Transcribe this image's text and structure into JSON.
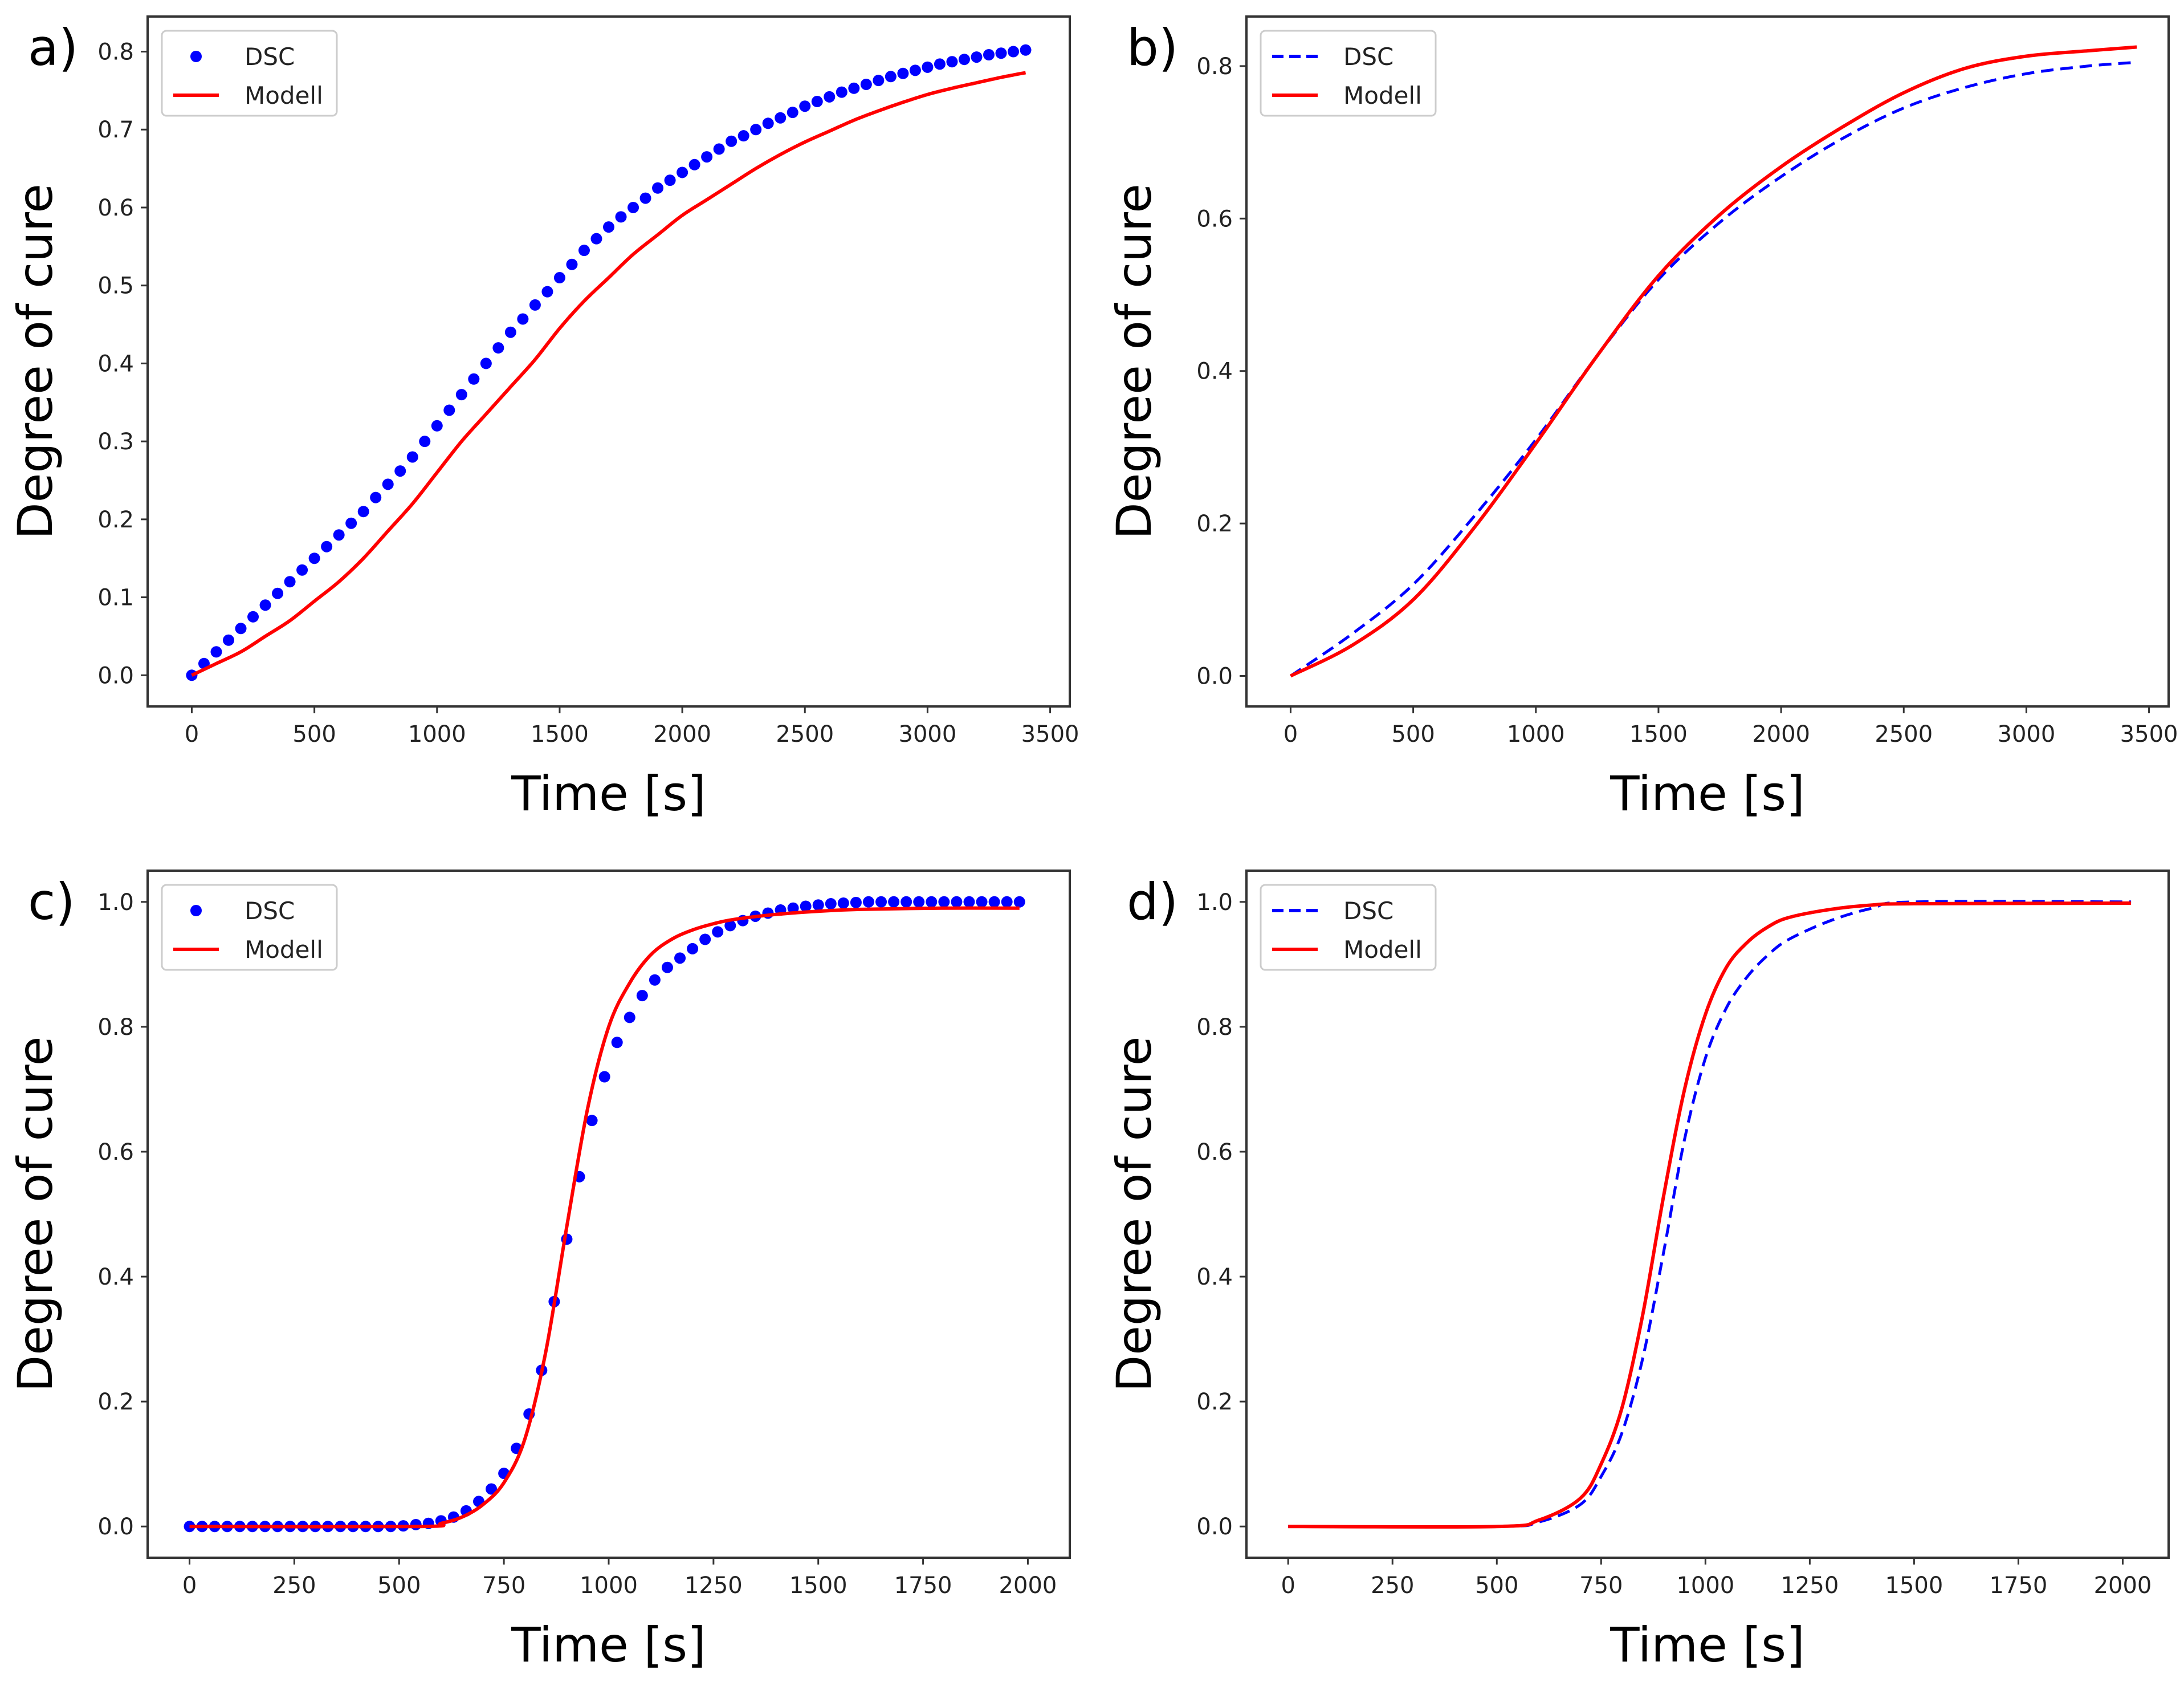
{
  "chart_data": [
    {
      "type": "line",
      "panel_label": "a)",
      "xlabel": "Time [s]",
      "ylabel": "Degree of cure",
      "xlim": [
        -180,
        3580
      ],
      "ylim": [
        -0.04,
        0.845
      ],
      "xticks": [
        0,
        500,
        1000,
        1500,
        2000,
        2500,
        3000,
        3500
      ],
      "yticks": [
        0.0,
        0.1,
        0.2,
        0.3,
        0.4,
        0.5,
        0.6,
        0.7,
        0.8
      ],
      "ytick_decimals": 1,
      "legend": "top-left",
      "series": [
        {
          "name": "DSC",
          "style": "dots",
          "color": "#0000ff",
          "x_start": 0,
          "x_step": 50,
          "y": [
            0,
            0.015,
            0.03,
            0.045,
            0.06,
            0.075,
            0.09,
            0.105,
            0.12,
            0.135,
            0.15,
            0.165,
            0.18,
            0.195,
            0.21,
            0.228,
            0.245,
            0.262,
            0.28,
            0.3,
            0.32,
            0.34,
            0.36,
            0.38,
            0.4,
            0.42,
            0.44,
            0.457,
            0.475,
            0.492,
            0.51,
            0.527,
            0.545,
            0.56,
            0.575,
            0.588,
            0.6,
            0.612,
            0.625,
            0.635,
            0.645,
            0.655,
            0.665,
            0.675,
            0.685,
            0.692,
            0.7,
            0.708,
            0.715,
            0.722,
            0.73,
            0.736,
            0.742,
            0.748,
            0.753,
            0.758,
            0.763,
            0.768,
            0.772,
            0.776,
            0.78,
            0.784,
            0.787,
            0.79,
            0.793,
            0.796,
            0.798,
            0.8,
            0.802
          ]
        },
        {
          "name": "Modell",
          "style": "solid",
          "color": "#ff0000",
          "x_start": 0,
          "x_step": 100,
          "y": [
            0,
            0.015,
            0.03,
            0.05,
            0.07,
            0.095,
            0.12,
            0.15,
            0.185,
            0.22,
            0.26,
            0.3,
            0.335,
            0.37,
            0.405,
            0.445,
            0.48,
            0.51,
            0.54,
            0.565,
            0.59,
            0.61,
            0.63,
            0.65,
            0.668,
            0.684,
            0.698,
            0.712,
            0.724,
            0.735,
            0.745,
            0.753,
            0.76,
            0.767,
            0.773
          ]
        }
      ]
    },
    {
      "type": "line",
      "panel_label": "b)",
      "xlabel": "Time [s]",
      "ylabel": "Degree of cure",
      "xlim": [
        -180,
        3580
      ],
      "ylim": [
        -0.04,
        0.865
      ],
      "xticks": [
        0,
        500,
        1000,
        1500,
        2000,
        2500,
        3000,
        3500
      ],
      "yticks": [
        0.0,
        0.2,
        0.4,
        0.6,
        0.8
      ],
      "ytick_decimals": 1,
      "legend": "top-left",
      "series": [
        {
          "name": "DSC",
          "style": "dashed",
          "color": "#0000ff",
          "x": [
            0,
            250,
            500,
            750,
            1000,
            1250,
            1500,
            1750,
            2000,
            2250,
            2500,
            2750,
            3000,
            3250,
            3450
          ],
          "y": [
            0,
            0.055,
            0.12,
            0.21,
            0.31,
            0.42,
            0.52,
            0.595,
            0.655,
            0.705,
            0.745,
            0.772,
            0.79,
            0.8,
            0.805
          ]
        },
        {
          "name": "Modell",
          "style": "solid",
          "color": "#ff0000",
          "x": [
            0,
            250,
            500,
            750,
            1000,
            1250,
            1500,
            1750,
            2000,
            2250,
            2500,
            2750,
            3000,
            3250,
            3450
          ],
          "y": [
            0,
            0.04,
            0.1,
            0.195,
            0.305,
            0.42,
            0.525,
            0.605,
            0.668,
            0.72,
            0.765,
            0.797,
            0.813,
            0.82,
            0.825
          ]
        }
      ]
    },
    {
      "type": "line",
      "panel_label": "c)",
      "xlabel": "Time [s]",
      "ylabel": "Degree of cure",
      "xlim": [
        -100,
        2100
      ],
      "ylim": [
        -0.05,
        1.05
      ],
      "xticks": [
        0,
        250,
        500,
        750,
        1000,
        1250,
        1500,
        1750,
        2000
      ],
      "yticks": [
        0.0,
        0.2,
        0.4,
        0.6,
        0.8,
        1.0
      ],
      "ytick_decimals": 1,
      "legend": "top-left",
      "series": [
        {
          "name": "DSC",
          "style": "dots",
          "color": "#0000ff",
          "x_start": 0,
          "x_step": 30,
          "y": [
            0,
            0,
            0,
            0,
            0,
            0,
            0,
            0,
            0,
            0,
            0,
            0,
            0,
            0,
            0,
            0,
            0,
            0.001,
            0.003,
            0.005,
            0.009,
            0.015,
            0.025,
            0.04,
            0.06,
            0.085,
            0.125,
            0.18,
            0.25,
            0.36,
            0.46,
            0.56,
            0.65,
            0.72,
            0.775,
            0.815,
            0.85,
            0.875,
            0.895,
            0.91,
            0.925,
            0.94,
            0.952,
            0.962,
            0.97,
            0.977,
            0.982,
            0.987,
            0.99,
            0.993,
            0.995,
            0.997,
            0.998,
            0.999,
            1,
            1,
            1,
            1,
            1,
            1,
            1,
            1,
            1,
            1,
            1,
            1,
            1
          ]
        },
        {
          "name": "Modell",
          "style": "solid",
          "color": "#ff0000",
          "x": [
            0,
            550,
            600,
            650,
            700,
            750,
            800,
            850,
            900,
            950,
            1000,
            1050,
            1100,
            1150,
            1200,
            1250,
            1300,
            1400,
            1500,
            1600,
            1800,
            1980
          ],
          "y": [
            0,
            0,
            0.005,
            0.015,
            0.035,
            0.07,
            0.14,
            0.28,
            0.48,
            0.67,
            0.8,
            0.87,
            0.915,
            0.94,
            0.955,
            0.965,
            0.972,
            0.98,
            0.985,
            0.988,
            0.99,
            0.99
          ]
        }
      ]
    },
    {
      "type": "line",
      "panel_label": "d)",
      "xlabel": "Time [s]",
      "ylabel": "Degree of cure",
      "xlim": [
        -100,
        2110
      ],
      "ylim": [
        -0.05,
        1.05
      ],
      "xticks": [
        0,
        250,
        500,
        750,
        1000,
        1250,
        1500,
        1750,
        2000
      ],
      "yticks": [
        0.0,
        0.2,
        0.4,
        0.6,
        0.8,
        1.0
      ],
      "ytick_decimals": 1,
      "legend": "top-left",
      "series": [
        {
          "name": "DSC",
          "style": "dashed",
          "color": "#0000ff",
          "x": [
            0,
            500,
            600,
            700,
            750,
            800,
            850,
            900,
            950,
            1000,
            1050,
            1100,
            1150,
            1200,
            1300,
            1400,
            1500,
            2020
          ],
          "y": [
            0,
            0,
            0.007,
            0.035,
            0.08,
            0.15,
            0.27,
            0.44,
            0.62,
            0.75,
            0.83,
            0.88,
            0.915,
            0.94,
            0.97,
            0.99,
            1,
            1
          ]
        },
        {
          "name": "Modell",
          "style": "solid",
          "color": "#ff0000",
          "x": [
            0,
            500,
            600,
            700,
            750,
            800,
            850,
            900,
            950,
            1000,
            1050,
            1100,
            1150,
            1200,
            1300,
            1400,
            1500,
            2020
          ],
          "y": [
            0,
            0,
            0.01,
            0.045,
            0.1,
            0.19,
            0.34,
            0.53,
            0.7,
            0.82,
            0.895,
            0.935,
            0.96,
            0.975,
            0.988,
            0.995,
            0.997,
            0.998
          ]
        }
      ]
    }
  ]
}
